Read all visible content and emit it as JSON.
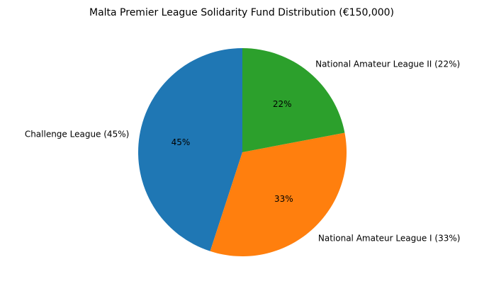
{
  "figure": {
    "background_color": "#ffffff",
    "text_color": "#000000"
  },
  "chart_data": {
    "type": "pie",
    "title": "Malta Premier League Solidarity Fund Distribution (€150,000)",
    "total_fund": "€150,000",
    "start_angle_deg": 90,
    "counterclockwise": true,
    "legend_position": "none",
    "grid": false,
    "slices": [
      {
        "label": "Challenge League",
        "value_pct": 45,
        "display_label": "Challenge League (45%)",
        "pct_label": "45%",
        "color": "#1f77b4"
      },
      {
        "label": "National Amateur League I",
        "value_pct": 33,
        "display_label": "National Amateur League I (33%)",
        "pct_label": "33%",
        "color": "#ff7f0e"
      },
      {
        "label": "National Amateur League II",
        "value_pct": 22,
        "display_label": "National Amateur League II (22%)",
        "pct_label": "22%",
        "color": "#2ca02c"
      }
    ]
  }
}
